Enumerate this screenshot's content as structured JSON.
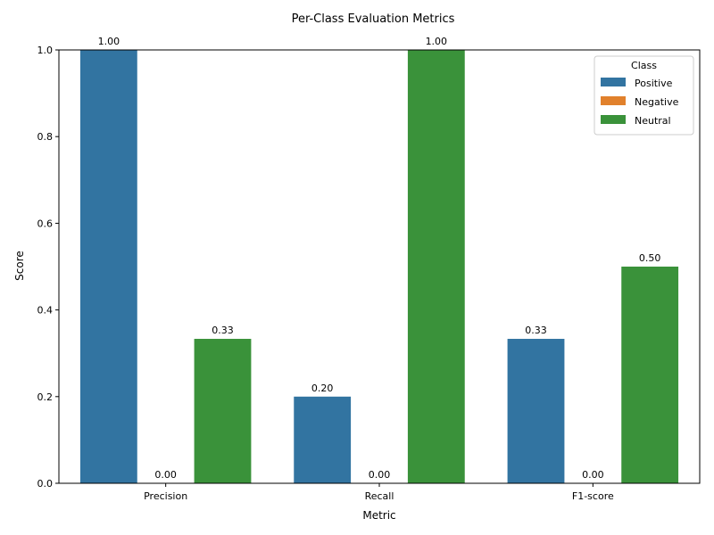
{
  "chart_data": {
    "type": "bar",
    "title": "Per-Class Evaluation Metrics",
    "xlabel": "Metric",
    "ylabel": "Score",
    "ylim": [
      0,
      1.0
    ],
    "yticks": [
      "0.0",
      "0.2",
      "0.4",
      "0.6",
      "0.8",
      "1.0"
    ],
    "categories": [
      "Precision",
      "Recall",
      "F1-score"
    ],
    "series": [
      {
        "name": "Positive",
        "color": "#3274a1",
        "values": [
          1.0,
          0.2,
          0.3333
        ],
        "labels": [
          "1.00",
          "0.20",
          "0.33"
        ]
      },
      {
        "name": "Negative",
        "color": "#e1812c",
        "values": [
          0.0,
          0.0,
          0.0
        ],
        "labels": [
          "0.00",
          "0.00",
          "0.00"
        ]
      },
      {
        "name": "Neutral",
        "color": "#3a923a",
        "values": [
          0.3333,
          1.0,
          0.5
        ],
        "labels": [
          "0.33",
          "1.00",
          "0.50"
        ]
      }
    ],
    "legend": {
      "title": "Class",
      "placement": "top-right"
    },
    "grid": false
  }
}
